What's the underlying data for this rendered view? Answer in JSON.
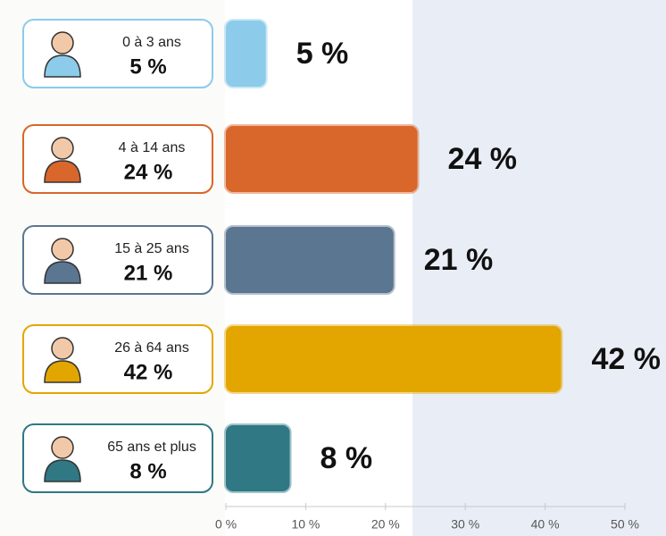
{
  "chart_data": {
    "type": "bar",
    "orientation": "horizontal",
    "categories": [
      "0 à 3 ans",
      "4 à 14 ans",
      "15 à 25 ans",
      "26 à 64 ans",
      "65 ans et plus"
    ],
    "values": [
      5,
      24,
      21,
      42,
      8
    ],
    "value_labels": [
      "5 %",
      "24 %",
      "21 %",
      "42 %",
      "8 %"
    ],
    "colors": [
      "#8ccbea",
      "#d9662b",
      "#5b7691",
      "#e3a600",
      "#2f7884"
    ],
    "xlim": [
      0,
      50
    ],
    "xticks": [
      {
        "value": 0,
        "label": "0 %"
      },
      {
        "value": 10,
        "label": "10 %"
      },
      {
        "value": 20,
        "label": "20 %"
      },
      {
        "value": 30,
        "label": "30 %"
      },
      {
        "value": 40,
        "label": "40 %"
      },
      {
        "value": 50,
        "label": "50 %"
      }
    ]
  }
}
